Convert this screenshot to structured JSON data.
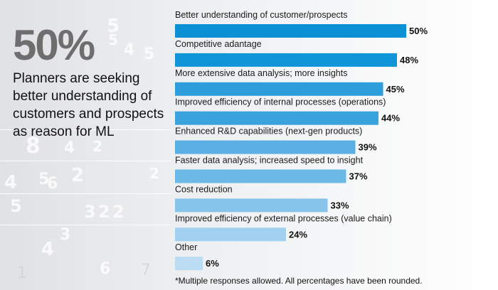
{
  "stat": {
    "number": "50%",
    "description": "Planners are seeking better understanding of customers and prospects as reason for ML"
  },
  "footnote": "*Multiple responses allowed. All percentages have been rounded.",
  "chart_data": {
    "type": "bar",
    "orientation": "horizontal",
    "title": "",
    "xlabel": "",
    "ylabel": "",
    "xlim": [
      0,
      50
    ],
    "grid": false,
    "legend": "none",
    "value_suffix": "%",
    "categories": [
      "Better understanding of customer/prospects",
      "Competitive adantage",
      "More extensive data analysis; more insights",
      "Improved efficiency of internal processes (operations)",
      "Enhanced R&D capabilities (next-gen products)",
      "Faster data analysis; increased speed to insight",
      "Cost reduction",
      "Improved efficiency of external processes (value chain)",
      "Other"
    ],
    "values": [
      50,
      48,
      45,
      44,
      39,
      37,
      33,
      24,
      6
    ],
    "colors": [
      "#0b90d6",
      "#0f95d8",
      "#2d9edb",
      "#3aa2dc",
      "#5aafe2",
      "#6cb8e6",
      "#86c4eb",
      "#a2d0f0",
      "#bcdcf4"
    ]
  },
  "background_digits": [
    "5",
    "4",
    "5",
    "5",
    "2",
    "8",
    "4",
    "4",
    "2",
    "5",
    "6",
    "2",
    "3",
    "2",
    "2",
    "3",
    "4",
    "6",
    "5",
    "7",
    "1"
  ]
}
